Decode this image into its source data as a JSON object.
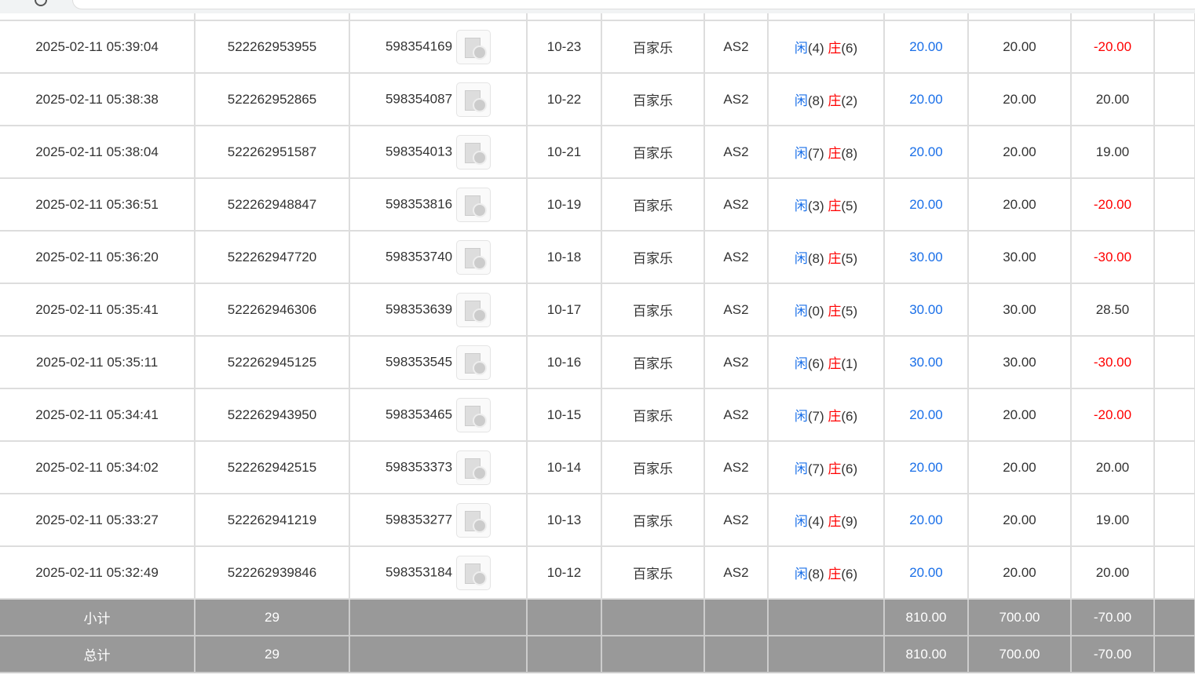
{
  "rows": [
    {
      "time": "2025-02-11 05:39:04",
      "order": "522262953955",
      "round": "598354169",
      "shoe": "10-23",
      "game": "百家乐",
      "table": "AS2",
      "p": "4",
      "b": "6",
      "bet": "20.00",
      "valid": "20.00",
      "win": "-20.00",
      "neg": true
    },
    {
      "time": "2025-02-11 05:38:38",
      "order": "522262952865",
      "round": "598354087",
      "shoe": "10-22",
      "game": "百家乐",
      "table": "AS2",
      "p": "8",
      "b": "2",
      "bet": "20.00",
      "valid": "20.00",
      "win": "20.00",
      "neg": false
    },
    {
      "time": "2025-02-11 05:38:04",
      "order": "522262951587",
      "round": "598354013",
      "shoe": "10-21",
      "game": "百家乐",
      "table": "AS2",
      "p": "7",
      "b": "8",
      "bet": "20.00",
      "valid": "20.00",
      "win": "19.00",
      "neg": false
    },
    {
      "time": "2025-02-11 05:36:51",
      "order": "522262948847",
      "round": "598353816",
      "shoe": "10-19",
      "game": "百家乐",
      "table": "AS2",
      "p": "3",
      "b": "5",
      "bet": "20.00",
      "valid": "20.00",
      "win": "-20.00",
      "neg": true
    },
    {
      "time": "2025-02-11 05:36:20",
      "order": "522262947720",
      "round": "598353740",
      "shoe": "10-18",
      "game": "百家乐",
      "table": "AS2",
      "p": "8",
      "b": "5",
      "bet": "30.00",
      "valid": "30.00",
      "win": "-30.00",
      "neg": true
    },
    {
      "time": "2025-02-11 05:35:41",
      "order": "522262946306",
      "round": "598353639",
      "shoe": "10-17",
      "game": "百家乐",
      "table": "AS2",
      "p": "0",
      "b": "5",
      "bet": "30.00",
      "valid": "30.00",
      "win": "28.50",
      "neg": false
    },
    {
      "time": "2025-02-11 05:35:11",
      "order": "522262945125",
      "round": "598353545",
      "shoe": "10-16",
      "game": "百家乐",
      "table": "AS2",
      "p": "6",
      "b": "1",
      "bet": "30.00",
      "valid": "30.00",
      "win": "-30.00",
      "neg": true
    },
    {
      "time": "2025-02-11 05:34:41",
      "order": "522262943950",
      "round": "598353465",
      "shoe": "10-15",
      "game": "百家乐",
      "table": "AS2",
      "p": "7",
      "b": "6",
      "bet": "20.00",
      "valid": "20.00",
      "win": "-20.00",
      "neg": true
    },
    {
      "time": "2025-02-11 05:34:02",
      "order": "522262942515",
      "round": "598353373",
      "shoe": "10-14",
      "game": "百家乐",
      "table": "AS2",
      "p": "7",
      "b": "6",
      "bet": "20.00",
      "valid": "20.00",
      "win": "20.00",
      "neg": false
    },
    {
      "time": "2025-02-11 05:33:27",
      "order": "522262941219",
      "round": "598353277",
      "shoe": "10-13",
      "game": "百家乐",
      "table": "AS2",
      "p": "4",
      "b": "9",
      "bet": "20.00",
      "valid": "20.00",
      "win": "19.00",
      "neg": false
    },
    {
      "time": "2025-02-11 05:32:49",
      "order": "522262939846",
      "round": "598353184",
      "shoe": "10-12",
      "game": "百家乐",
      "table": "AS2",
      "p": "8",
      "b": "6",
      "bet": "20.00",
      "valid": "20.00",
      "win": "20.00",
      "neg": false
    }
  ],
  "player_label": "闲",
  "banker_label": "庄",
  "summary": [
    {
      "label": "小计",
      "count": "29",
      "bet": "810.00",
      "valid": "700.00",
      "win": "-70.00"
    },
    {
      "label": "总计",
      "count": "29",
      "bet": "810.00",
      "valid": "700.00",
      "win": "-70.00"
    }
  ],
  "colors": {
    "player": "#1a6fe8",
    "banker": "#ff0000",
    "negative": "#ff0000",
    "summary_bg": "#999999"
  }
}
